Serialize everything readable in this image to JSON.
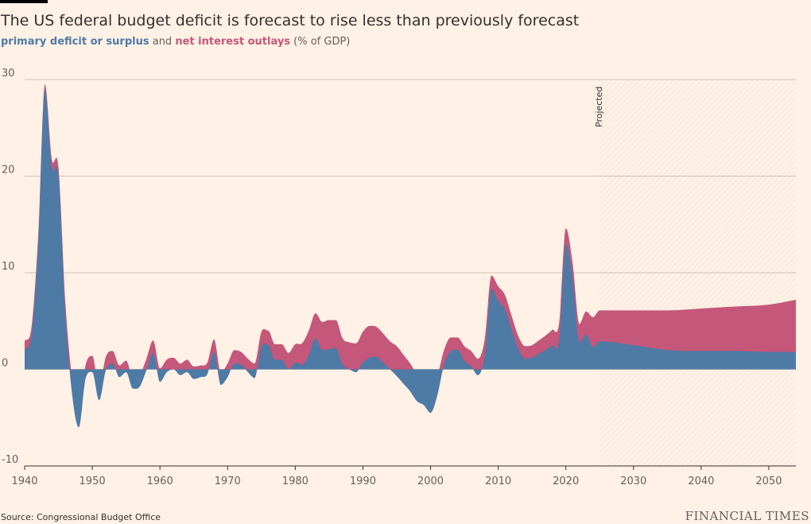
{
  "header": {
    "title": "The US federal budget deficit is forecast to rise less than previously forecast",
    "legend_primary": "primary deficit or surplus",
    "legend_and": " and ",
    "legend_interest": "net interest outlays",
    "legend_unit": " (% of GDP)"
  },
  "footer": {
    "source": "Source: Congressional Budget Office",
    "brand": "FINANCIAL TIMES"
  },
  "colors": {
    "background": "#FFF1E5",
    "primary": "#4E7AA6",
    "interest": "#C4577A",
    "grid": "#CCC1B7",
    "text": "#33302E"
  },
  "chart_data": {
    "type": "area",
    "x_label": "",
    "y_label": "",
    "xlim": [
      1940,
      2054
    ],
    "ylim": [
      -10,
      30
    ],
    "x_ticks": [
      "1940",
      "1950",
      "1960",
      "1970",
      "1980",
      "1990",
      "2000",
      "2010",
      "2020",
      "2030",
      "2040",
      "2050"
    ],
    "y_ticks": [
      "30",
      "20",
      "10",
      "0",
      "-10"
    ],
    "projected_label": "Projected",
    "projected_start": 2025,
    "x": [
      1940,
      1941,
      1942,
      1943,
      1944,
      1945,
      1946,
      1947,
      1948,
      1949,
      1950,
      1951,
      1952,
      1953,
      1954,
      1955,
      1956,
      1957,
      1958,
      1959,
      1960,
      1961,
      1962,
      1963,
      1964,
      1965,
      1966,
      1967,
      1968,
      1969,
      1970,
      1971,
      1972,
      1973,
      1974,
      1975,
      1976,
      1977,
      1978,
      1979,
      1980,
      1981,
      1982,
      1983,
      1984,
      1985,
      1986,
      1987,
      1988,
      1989,
      1990,
      1991,
      1992,
      1993,
      1994,
      1995,
      1996,
      1997,
      1998,
      1999,
      2000,
      2001,
      2002,
      2003,
      2004,
      2005,
      2006,
      2007,
      2008,
      2009,
      2010,
      2011,
      2012,
      2013,
      2014,
      2015,
      2016,
      2017,
      2018,
      2019,
      2020,
      2021,
      2022,
      2023,
      2024,
      2025,
      2030,
      2035,
      2040,
      2045,
      2050,
      2054
    ],
    "series": [
      {
        "name": "primary deficit or surplus",
        "values": [
          2.0,
          3.5,
          13.0,
          29.0,
          21.0,
          20.0,
          6.0,
          -2.5,
          -6.0,
          -1.0,
          -0.3,
          -3.2,
          -0.1,
          0.6,
          -0.8,
          -0.3,
          -2.0,
          -1.8,
          -0.1,
          1.7,
          -1.3,
          -0.3,
          0.0,
          -0.6,
          -0.3,
          -1.0,
          -0.8,
          -0.5,
          1.8,
          -1.6,
          -0.8,
          0.6,
          0.5,
          -0.3,
          -0.9,
          2.4,
          2.5,
          1.0,
          1.0,
          0.0,
          0.7,
          0.5,
          1.5,
          3.2,
          2.0,
          2.1,
          2.2,
          0.5,
          0.0,
          -0.3,
          0.7,
          1.2,
          1.3,
          0.7,
          0.0,
          -0.7,
          -1.5,
          -2.3,
          -3.3,
          -3.7,
          -4.5,
          -2.7,
          0.5,
          1.9,
          2.0,
          0.9,
          0.3,
          -0.6,
          1.4,
          8.3,
          7.1,
          6.2,
          4.1,
          2.1,
          1.1,
          1.2,
          1.6,
          2.0,
          2.5,
          3.0,
          13.0,
          9.5,
          2.8,
          3.6,
          2.3,
          2.9,
          2.5,
          2.0,
          1.9,
          1.9,
          1.8,
          1.8
        ]
      },
      {
        "name": "net interest outlays",
        "values": [
          0.9,
          0.8,
          0.8,
          0.5,
          0.8,
          0.9,
          1.1,
          1.7,
          1.5,
          1.4,
          1.7,
          1.4,
          1.4,
          1.3,
          1.2,
          1.2,
          1.2,
          1.2,
          1.2,
          1.3,
          1.4,
          1.3,
          1.2,
          1.2,
          1.3,
          1.3,
          1.2,
          1.2,
          1.3,
          1.3,
          1.4,
          1.4,
          1.3,
          1.4,
          1.5,
          1.5,
          1.5,
          1.6,
          1.6,
          1.7,
          1.9,
          2.2,
          2.5,
          2.6,
          2.9,
          3.0,
          2.9,
          2.7,
          2.8,
          3.0,
          3.2,
          3.3,
          3.1,
          3.0,
          2.9,
          3.1,
          3.0,
          2.9,
          2.8,
          2.5,
          2.3,
          2.0,
          1.5,
          1.4,
          1.3,
          1.5,
          1.6,
          1.7,
          1.7,
          1.4,
          1.5,
          1.5,
          1.4,
          1.3,
          1.3,
          1.3,
          1.4,
          1.5,
          1.6,
          1.8,
          1.6,
          1.5,
          1.9,
          2.4,
          3.1,
          3.2,
          3.6,
          4.1,
          4.4,
          4.6,
          4.9,
          5.4
        ]
      }
    ]
  }
}
